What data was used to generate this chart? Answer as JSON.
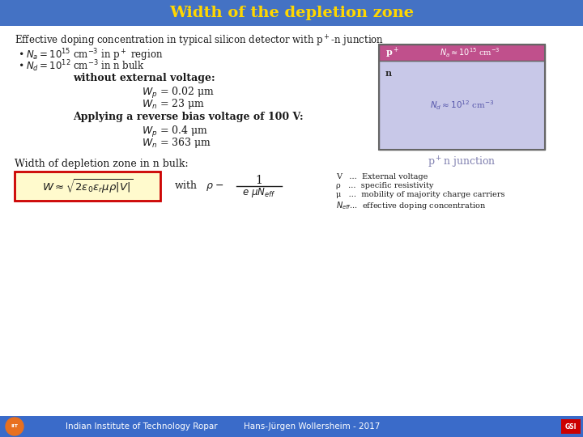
{
  "title": "Width of the depletion zone",
  "title_bg": "#4472C4",
  "title_fg": "#FFD700",
  "slide_bg": "#FFFFFF",
  "footer_bg": "#3A6BC9",
  "footer_text_left": "Indian Institute of Technology Ropar",
  "footer_text_center": "Hans-Jürgen Wollersheim - 2017",
  "main_text_color": "#1a1a1a",
  "bullet1": "$N_a = 10^{15}$ cm$^{-3}$ in p$^+$ region",
  "bullet2": "$N_d = 10^{12}$ cm$^{-3}$ in n bulk",
  "heading": "Effective doping concentration in typical silicon detector with p$^+$-n junction",
  "section1_header": "without external voltage:",
  "section1_line1": "$W_p$ = 0.02 μm",
  "section1_line2": "$W_n$ = 23 μm",
  "section2_header": "Applying a reverse bias voltage of 100 V:",
  "section2_line1": "$W_p$ = 0.4 μm",
  "section2_line2": "$W_n$ = 363 μm",
  "section3_header": "Width of depletion zone in n bulk:",
  "formula_box_bg": "#FFFACD",
  "formula_box_border": "#CC0000",
  "legend_line1": "V   ...  External voltage",
  "legend_line2": "ρ   ...  specific resistivity",
  "legend_line3": "μ   ...  mobility of majority charge carriers",
  "legend_line4": "$N_{eff}$...  effective doping concentration",
  "diag_p_color": "#C0508C",
  "diag_n_color": "#C8C8E8",
  "diag_border": "#666666",
  "diag_p_label": "p$^+$",
  "diag_p_text": "$N_a \\approx 10^{15}$ cm$^{-3}$",
  "diag_n_label": "n",
  "diag_n_text": "$N_d \\approx 10^{12}$ cm$^{-3}$",
  "diag_caption": "p$^+$n junction",
  "caption_color": "#8080B0"
}
